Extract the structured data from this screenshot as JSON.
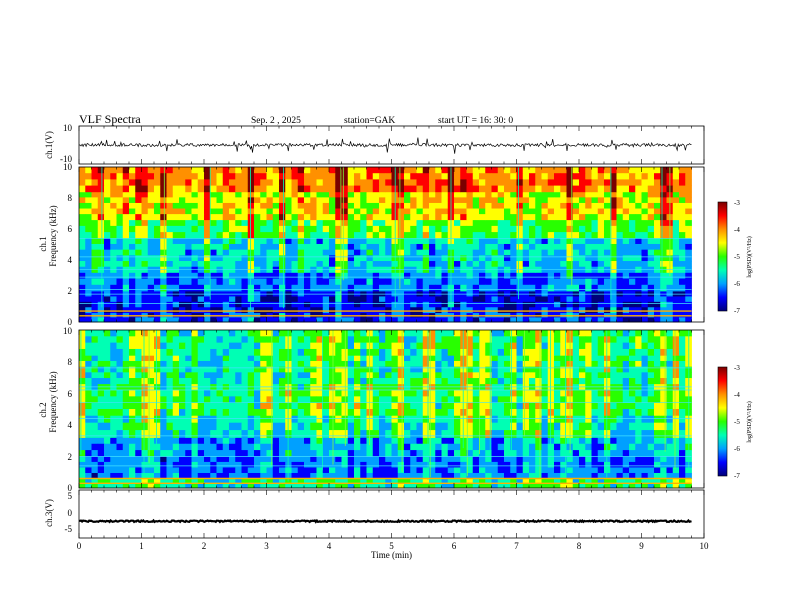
{
  "header": {
    "title": "VLF  Spectra",
    "date": "Sep. 2  , 2025",
    "station": "station=GAK",
    "start": "start  UT  =   16: 30: 0"
  },
  "chart_data": [
    {
      "type": "line",
      "name": "ch1-waveform",
      "ylabel": "ch.1(V)",
      "ylim": [
        -10,
        10
      ],
      "yticks": [
        "10",
        "-10"
      ],
      "xlim": [
        0,
        10
      ],
      "baseline": 0,
      "data_end_min": 9.8,
      "spike_amplitude_range": [
        -4,
        4
      ]
    },
    {
      "type": "heatmap",
      "name": "ch1-spectrogram",
      "ylabel": "ch.1\nFrequency  (kHz)",
      "ylabel_line1": "ch.1",
      "ylabel_line2": "Frequency  (kHz)",
      "ylim": [
        0,
        10
      ],
      "yticks": [
        "0",
        "2",
        "4",
        "6",
        "8",
        "10"
      ],
      "xlim": [
        0,
        10
      ],
      "data_end_min": 9.8,
      "color_scale": "log(PSD)(V²/Hz)",
      "colorbar_ticks": [
        "-3",
        "-4",
        "-5",
        "-6",
        "-7"
      ],
      "clim": [
        -7,
        -3
      ],
      "bands": [
        {
          "from_khz": 0,
          "to_khz": 0.6,
          "level": -6.6
        },
        {
          "from_khz": 0.6,
          "to_khz": 2.0,
          "level": -6.7
        },
        {
          "from_khz": 2.0,
          "to_khz": 3.2,
          "level": -6.3
        },
        {
          "from_khz": 3.2,
          "to_khz": 5.4,
          "level": -6.0
        },
        {
          "from_khz": 5.4,
          "to_khz": 6.6,
          "level": -5.3
        },
        {
          "from_khz": 6.6,
          "to_khz": 8.4,
          "level": -4.7
        },
        {
          "from_khz": 8.4,
          "to_khz": 10.0,
          "level": -4.2
        }
      ],
      "lines_khz": [
        0.4,
        0.7,
        1.2,
        1.8,
        2.1,
        2.9,
        3.4,
        4.2,
        5.4
      ]
    },
    {
      "type": "heatmap",
      "name": "ch2-spectrogram",
      "ylabel": "ch.2\nFrequency  (kHz)",
      "ylabel_line1": "ch.2",
      "ylabel_line2": "Frequency  (kHz)",
      "ylim": [
        0,
        10
      ],
      "yticks": [
        "0",
        "2",
        "4",
        "6",
        "8",
        "10"
      ],
      "xlim": [
        0,
        10
      ],
      "data_end_min": 9.8,
      "color_scale": "log(PSD)(V²/Hz)",
      "colorbar_ticks": [
        "-3",
        "-4",
        "-5",
        "-6",
        "-7"
      ],
      "clim": [
        -7,
        -3
      ],
      "bands": [
        {
          "from_khz": 0,
          "to_khz": 0.6,
          "level": -5.6
        },
        {
          "from_khz": 0.6,
          "to_khz": 2.0,
          "level": -6.4
        },
        {
          "from_khz": 2.0,
          "to_khz": 3.2,
          "level": -6.2
        },
        {
          "from_khz": 3.2,
          "to_khz": 4.6,
          "level": -5.8
        },
        {
          "from_khz": 4.6,
          "to_khz": 6.6,
          "level": -5.5
        },
        {
          "from_khz": 6.6,
          "to_khz": 8.4,
          "level": -5.7
        },
        {
          "from_khz": 8.4,
          "to_khz": 10.0,
          "level": -5.6
        }
      ],
      "lines_khz": [
        0.3,
        0.6,
        1.4,
        2.0,
        3.3,
        4.4,
        5.4,
        6.2,
        6.4,
        7.6
      ]
    },
    {
      "type": "line",
      "name": "ch3-waveform",
      "ylabel": "ch.3(V)",
      "ylim": [
        -5,
        5
      ],
      "yticks": [
        "5",
        "0",
        "-5"
      ],
      "xlim": [
        0,
        10
      ],
      "baseline": -1.5,
      "data_end_min": 9.8
    }
  ],
  "x_axis": {
    "label": "Time  (min)",
    "ticks": [
      "0",
      "1",
      "2",
      "3",
      "4",
      "5",
      "6",
      "7",
      "8",
      "9",
      "10"
    ]
  },
  "colors": {
    "colormap": [
      "#00007a",
      "#0000ff",
      "#00a0ff",
      "#00ffb4",
      "#28ff00",
      "#ffff00",
      "#ff9000",
      "#ff0000",
      "#7a0000"
    ]
  }
}
